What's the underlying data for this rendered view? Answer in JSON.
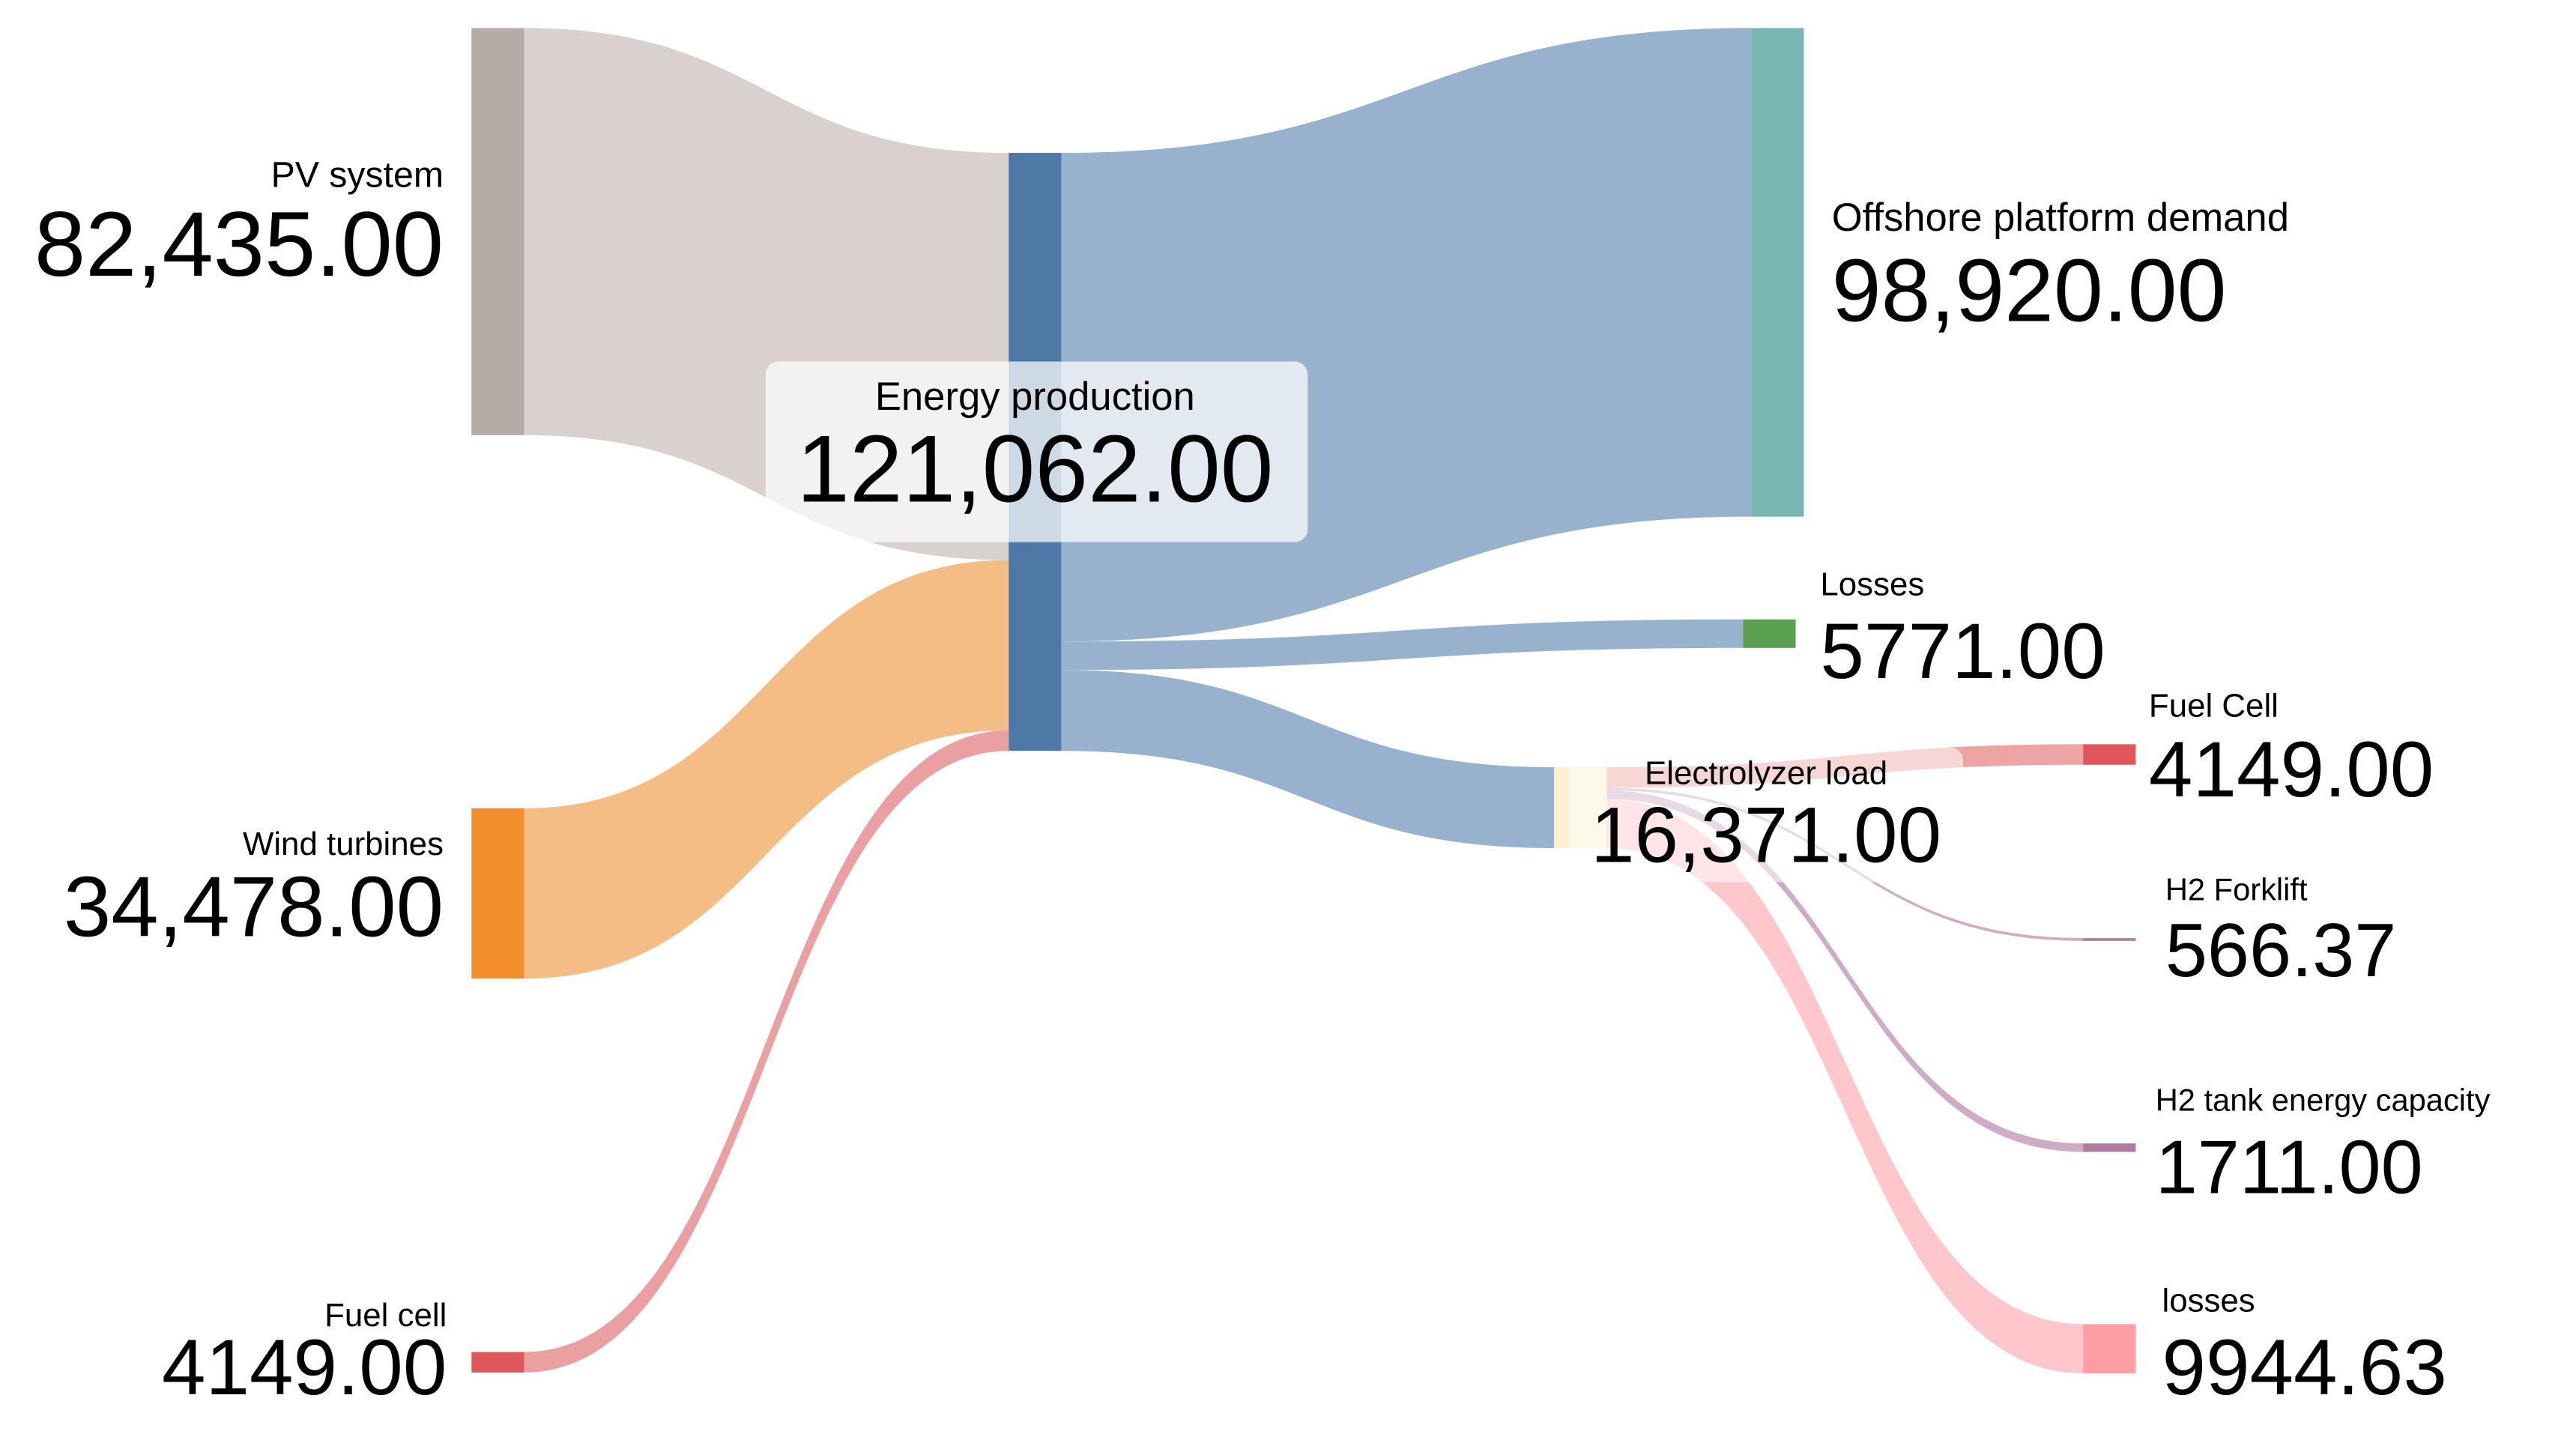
{
  "chart_data": {
    "type": "sankey",
    "nodes": {
      "names": [
        "PV system",
        "Wind turbines",
        "Fuel cell",
        "Energy production",
        "Offshore platform demand",
        "Losses",
        "Electrolyzer load",
        "Fuel Cell",
        "H2 Forklift",
        "H2 tank energy capacity",
        "losses"
      ],
      "values": [
        82435,
        34478,
        4149,
        121062,
        98920,
        5771,
        16371,
        4149,
        566.37,
        1711,
        9944.63
      ],
      "value_labels": [
        "82,435.00",
        "34,478.00",
        "4149.00",
        "121,062.00",
        "98,920.00",
        "5771.00",
        "16,371.00",
        "4149.00",
        "566.37",
        "1711.00",
        "9944.63"
      ],
      "colors": [
        "#b5aca8",
        "#f28e2b",
        "#e15759",
        "#4e79a7",
        "#76b7b2",
        "#59a14f",
        "#fbf1cf",
        "#e15759",
        "#b07aa1",
        "#b07aa1",
        "#ff9da7"
      ]
    },
    "links": {
      "source": [
        0,
        1,
        2,
        3,
        3,
        3,
        6,
        6,
        6,
        6
      ],
      "target": [
        3,
        3,
        3,
        4,
        5,
        6,
        7,
        8,
        9,
        10
      ],
      "values": [
        82435,
        34478,
        4149,
        98920,
        5771,
        16371,
        4149,
        566.37,
        1711,
        9944.63
      ],
      "colors": [
        "#d4ccc9",
        "#f4b679",
        "#e89596",
        "#8da8c8",
        "#8da8c8",
        "#8da8c8",
        "#eb9a9b",
        "#c9a3c0",
        "#c9a3c0",
        "#ffc0c7"
      ]
    }
  }
}
